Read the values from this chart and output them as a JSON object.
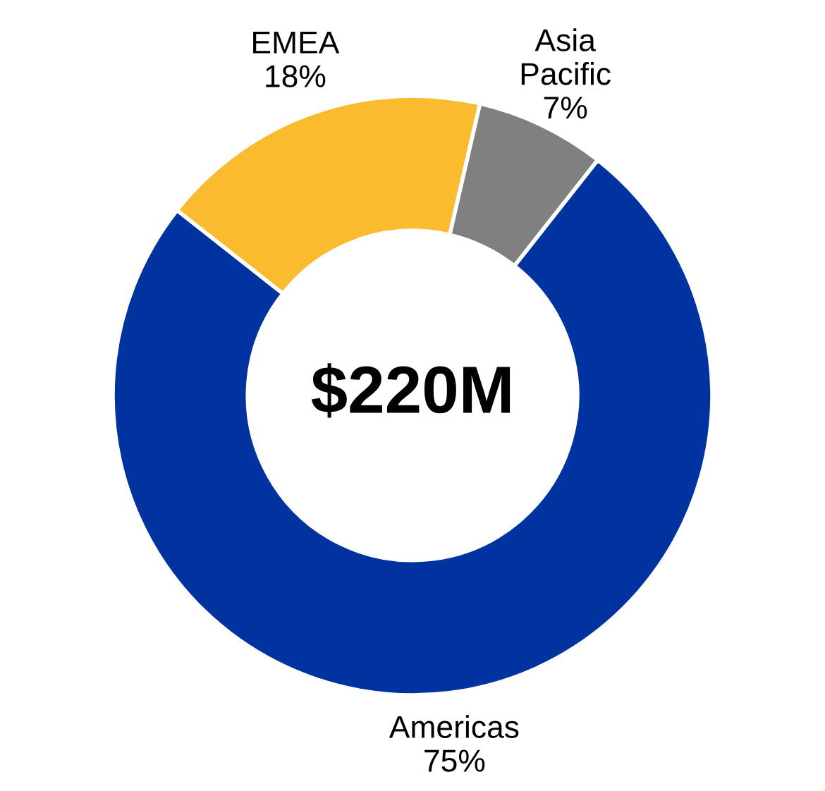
{
  "chart_data": {
    "type": "donut",
    "categories": [
      "Asia\nPacific",
      "Americas",
      "EMEA"
    ],
    "values": [
      7,
      75,
      18
    ],
    "value_labels": [
      "7%",
      "75%",
      "18%"
    ],
    "colors": [
      "#808080",
      "#0033a0",
      "#fbbb2f"
    ],
    "annotations": [
      "$220M"
    ]
  }
}
